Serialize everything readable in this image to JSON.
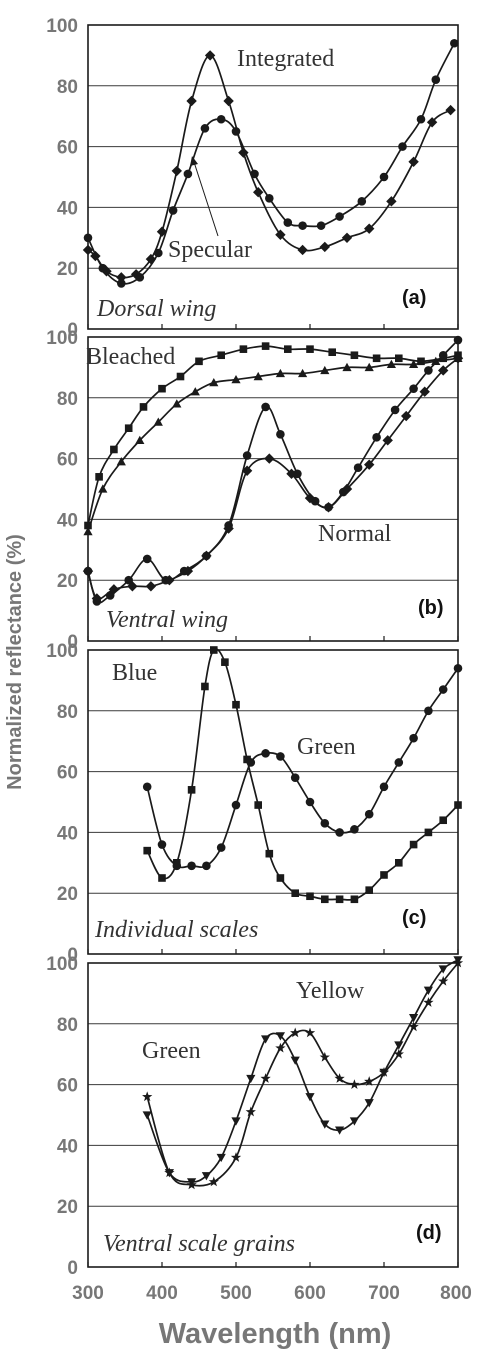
{
  "figure": {
    "ylabel": "Normalized reflectance (%)",
    "xlabel": "Wavelength (nm)",
    "x_ticks": [
      "300",
      "400",
      "500",
      "600",
      "700",
      "800"
    ],
    "y_ticks": [
      "0",
      "20",
      "40",
      "60",
      "80",
      "100"
    ]
  },
  "chart_data": [
    {
      "type": "line",
      "panel": "(a)",
      "subtitle": "Dorsal wing",
      "xlim": [
        300,
        800
      ],
      "ylim": [
        0,
        100
      ],
      "grid": true,
      "series": [
        {
          "name": "Integrated",
          "marker": "diamond",
          "x": [
            300,
            310,
            325,
            345,
            365,
            385,
            400,
            420,
            440,
            465,
            490,
            510,
            530,
            560,
            590,
            620,
            650,
            680,
            710,
            740,
            765,
            790
          ],
          "y": [
            26,
            24,
            19,
            17,
            18,
            23,
            32,
            52,
            75,
            90,
            75,
            58,
            45,
            31,
            26,
            27,
            30,
            33,
            42,
            55,
            68,
            72
          ]
        },
        {
          "name": "Specular",
          "marker": "circle",
          "x": [
            300,
            320,
            345,
            370,
            395,
            415,
            435,
            458,
            480,
            500,
            525,
            545,
            570,
            590,
            615,
            640,
            670,
            700,
            725,
            750,
            770,
            795
          ],
          "y": [
            30,
            20,
            15,
            17,
            25,
            39,
            51,
            66,
            69,
            65,
            51,
            43,
            35,
            34,
            34,
            37,
            42,
            50,
            60,
            69,
            82,
            94
          ]
        }
      ]
    },
    {
      "type": "line",
      "panel": "(b)",
      "subtitle": "Ventral wing",
      "xlim": [
        300,
        800
      ],
      "ylim": [
        0,
        100
      ],
      "grid": true,
      "annotations": [
        "Bleached",
        "Normal"
      ],
      "series": [
        {
          "marker": "square",
          "x": [
            300,
            315,
            335,
            355,
            375,
            400,
            425,
            450,
            480,
            510,
            540,
            570,
            600,
            630,
            660,
            690,
            720,
            750,
            780,
            800
          ],
          "y": [
            38,
            54,
            63,
            70,
            77,
            83,
            87,
            92,
            94,
            96,
            97,
            96,
            96,
            95,
            94,
            93,
            93,
            92,
            93,
            94
          ]
        },
        {
          "marker": "triangle",
          "x": [
            300,
            320,
            345,
            370,
            395,
            420,
            445,
            470,
            500,
            530,
            560,
            590,
            620,
            650,
            680,
            710,
            740,
            770,
            800
          ],
          "y": [
            36,
            50,
            59,
            66,
            72,
            78,
            82,
            85,
            86,
            87,
            88,
            88,
            89,
            90,
            90,
            91,
            91,
            92,
            93
          ]
        },
        {
          "marker": "circle",
          "x": [
            300,
            312,
            330,
            355,
            380,
            405,
            430,
            460,
            490,
            515,
            540,
            560,
            583,
            607,
            625,
            645,
            665,
            690,
            715,
            740,
            760,
            780,
            800
          ],
          "y": [
            23,
            13,
            15,
            20,
            27,
            20,
            23,
            28,
            38,
            61,
            77,
            68,
            55,
            46,
            44,
            49,
            57,
            67,
            76,
            83,
            89,
            94,
            99
          ]
        },
        {
          "marker": "diamond",
          "x": [
            300,
            312,
            335,
            360,
            385,
            410,
            435,
            460,
            490,
            515,
            545,
            575,
            600,
            625,
            650,
            680,
            705,
            730,
            755,
            780,
            800
          ],
          "y": [
            23,
            14,
            17,
            18,
            18,
            20,
            23,
            28,
            37,
            56,
            60,
            55,
            47,
            44,
            50,
            58,
            66,
            74,
            82,
            89,
            93
          ]
        }
      ]
    },
    {
      "type": "line",
      "panel": "(c)",
      "subtitle": "Individual scales",
      "xlim": [
        300,
        800
      ],
      "ylim": [
        0,
        100
      ],
      "grid": true,
      "series": [
        {
          "name": "Blue",
          "marker": "square",
          "x": [
            380,
            400,
            420,
            440,
            458,
            470,
            485,
            500,
            515,
            530,
            545,
            560,
            580,
            600,
            620,
            640,
            660,
            680,
            700,
            720,
            740,
            760,
            780,
            800
          ],
          "y": [
            34,
            25,
            30,
            54,
            88,
            100,
            96,
            82,
            64,
            49,
            33,
            25,
            20,
            19,
            18,
            18,
            18,
            21,
            26,
            30,
            36,
            40,
            44,
            49
          ]
        },
        {
          "name": "Green",
          "marker": "circle",
          "x": [
            380,
            400,
            420,
            440,
            460,
            480,
            500,
            520,
            540,
            560,
            580,
            600,
            620,
            640,
            660,
            680,
            700,
            720,
            740,
            760,
            780,
            800
          ],
          "y": [
            55,
            36,
            29,
            29,
            29,
            35,
            49,
            63,
            66,
            65,
            58,
            50,
            43,
            40,
            41,
            46,
            55,
            63,
            71,
            80,
            87,
            94
          ]
        }
      ]
    },
    {
      "type": "line",
      "panel": "(d)",
      "subtitle": "Ventral scale grains",
      "xlim": [
        300,
        800
      ],
      "ylim": [
        0,
        100
      ],
      "grid": true,
      "series": [
        {
          "name": "Yellow",
          "marker": "triangle-down",
          "x": [
            380,
            410,
            440,
            460,
            480,
            500,
            520,
            540,
            560,
            580,
            600,
            620,
            640,
            660,
            680,
            700,
            720,
            740,
            760,
            780,
            800
          ],
          "y": [
            50,
            31,
            28,
            30,
            36,
            48,
            62,
            75,
            76,
            68,
            56,
            47,
            45,
            48,
            54,
            64,
            73,
            82,
            91,
            98,
            101
          ]
        },
        {
          "name": "Green",
          "marker": "star",
          "x": [
            380,
            410,
            440,
            470,
            500,
            520,
            540,
            560,
            580,
            600,
            620,
            640,
            660,
            680,
            700,
            720,
            740,
            760,
            780,
            800
          ],
          "y": [
            56,
            31,
            27,
            28,
            36,
            51,
            62,
            72,
            77,
            77,
            69,
            62,
            60,
            61,
            64,
            70,
            79,
            87,
            94,
            100
          ]
        }
      ]
    }
  ]
}
